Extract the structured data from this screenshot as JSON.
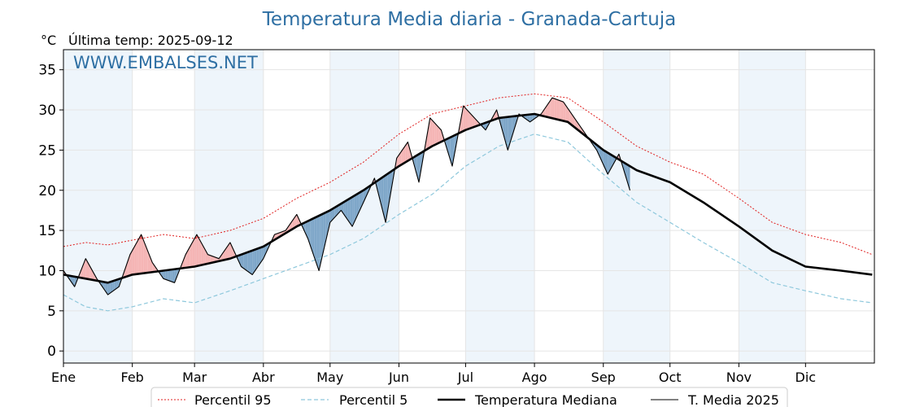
{
  "title": "Temperatura Media diaria - Granada-Cartuja",
  "unit_label": "°C",
  "last_temp_label": "Última temp: 2025-09-12",
  "watermark": "WWW.EMBALSES.NET",
  "colors": {
    "title": "#2e6fa3",
    "p95": "#e02020",
    "p5": "#8ec8dc",
    "median": "#000000",
    "current": "#000000",
    "above_fill": "#f5b5b5",
    "above_p95_fill": "#e86060",
    "below_fill": "#7fa7c9",
    "month_band": "#eef5fb",
    "grid": "#e5e5e5"
  },
  "chart_data": {
    "type": "line",
    "ylim": [
      -1.5,
      37.5
    ],
    "yticks": [
      0,
      5,
      10,
      15,
      20,
      25,
      30,
      35
    ],
    "xlim": [
      0,
      365
    ],
    "months": [
      {
        "label": "Ene",
        "day": 0
      },
      {
        "label": "Feb",
        "day": 31
      },
      {
        "label": "Mar",
        "day": 59
      },
      {
        "label": "Abr",
        "day": 90
      },
      {
        "label": "May",
        "day": 120
      },
      {
        "label": "Jun",
        "day": 151
      },
      {
        "label": "Jul",
        "day": 181
      },
      {
        "label": "Ago",
        "day": 212
      },
      {
        "label": "Sep",
        "day": 243
      },
      {
        "label": "Oct",
        "day": 273
      },
      {
        "label": "Nov",
        "day": 304
      },
      {
        "label": "Dic",
        "day": 334
      }
    ],
    "legend_position": "bottom-center",
    "series": [
      {
        "name": "Percentil 95",
        "style": "dotted-red",
        "x": [
          0,
          10,
          20,
          31,
          45,
          59,
          75,
          90,
          105,
          120,
          135,
          151,
          166,
          181,
          196,
          212,
          227,
          243,
          258,
          273,
          288,
          304,
          319,
          334,
          350,
          364
        ],
        "values": [
          13.0,
          13.5,
          13.2,
          13.8,
          14.5,
          14.0,
          15.0,
          16.5,
          19.0,
          21.0,
          23.5,
          27.0,
          29.5,
          30.5,
          31.5,
          32.0,
          31.5,
          28.5,
          25.5,
          23.5,
          22.0,
          19.0,
          16.0,
          14.5,
          13.5,
          12.0
        ]
      },
      {
        "name": "Percentil 5",
        "style": "dashed-blue",
        "x": [
          0,
          10,
          20,
          31,
          45,
          59,
          75,
          90,
          105,
          120,
          135,
          151,
          166,
          181,
          196,
          212,
          227,
          243,
          258,
          273,
          288,
          304,
          319,
          334,
          350,
          364
        ],
        "values": [
          7.0,
          5.5,
          5.0,
          5.5,
          6.5,
          6.0,
          7.5,
          9.0,
          10.5,
          12.0,
          14.0,
          17.0,
          19.5,
          23.0,
          25.5,
          27.0,
          26.0,
          22.0,
          18.5,
          16.0,
          13.5,
          11.0,
          8.5,
          7.5,
          6.5,
          6.0
        ]
      },
      {
        "name": "Temperatura Mediana",
        "style": "thick-black",
        "x": [
          0,
          10,
          20,
          31,
          45,
          59,
          75,
          90,
          105,
          120,
          135,
          151,
          166,
          181,
          196,
          212,
          227,
          243,
          258,
          273,
          288,
          304,
          319,
          334,
          350,
          364
        ],
        "values": [
          9.5,
          9.0,
          8.5,
          9.5,
          10.0,
          10.5,
          11.5,
          13.0,
          15.5,
          17.5,
          20.0,
          23.0,
          25.5,
          27.5,
          29.0,
          29.5,
          28.5,
          25.0,
          22.5,
          21.0,
          18.5,
          15.5,
          12.5,
          10.5,
          10.0,
          9.5
        ]
      },
      {
        "name": "T. Media 2025",
        "style": "thin-black",
        "x": [
          0,
          5,
          10,
          15,
          20,
          25,
          30,
          35,
          40,
          45,
          50,
          55,
          60,
          65,
          70,
          75,
          80,
          85,
          90,
          95,
          100,
          105,
          110,
          115,
          120,
          125,
          130,
          135,
          140,
          145,
          150,
          155,
          160,
          165,
          170,
          175,
          180,
          185,
          190,
          195,
          200,
          205,
          210,
          215,
          220,
          225,
          230,
          235,
          240,
          245,
          250,
          255
        ],
        "values": [
          10.0,
          8.0,
          11.5,
          9.0,
          7.0,
          8.0,
          12.0,
          14.5,
          11.0,
          9.0,
          8.5,
          12.0,
          14.5,
          12.0,
          11.5,
          13.5,
          10.5,
          9.5,
          11.5,
          14.5,
          15.0,
          17.0,
          14.0,
          10.0,
          16.0,
          17.5,
          15.5,
          18.5,
          21.5,
          16.0,
          24.0,
          26.0,
          21.0,
          29.0,
          27.5,
          23.0,
          30.5,
          29.0,
          27.5,
          30.0,
          25.0,
          29.5,
          28.5,
          29.5,
          31.5,
          31.0,
          29.0,
          27.0,
          25.0,
          22.0,
          24.5,
          20.0
        ]
      }
    ]
  }
}
